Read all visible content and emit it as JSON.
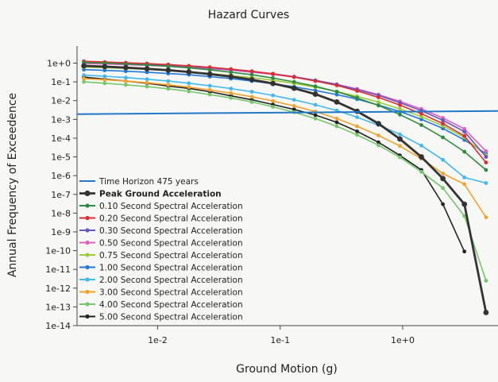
{
  "chart_data": {
    "type": "line",
    "title": "Hazard Curves",
    "xlabel": "Ground Motion (g)",
    "ylabel": "Annual Frequency of Exceedence",
    "x_scale": "log",
    "y_scale": "log",
    "xlim": [
      0.0022,
      6
    ],
    "ylim": [
      1e-14,
      5
    ],
    "x_ticks": [
      {
        "v": 0.01,
        "label": "1e-2"
      },
      {
        "v": 0.1,
        "label": "1e-1"
      },
      {
        "v": 1,
        "label": "1e+0"
      }
    ],
    "y_ticks": [
      {
        "v": 1,
        "label": "1e+0"
      },
      {
        "v": 0.1,
        "label": "1e-1"
      },
      {
        "v": 0.01,
        "label": "1e-2"
      },
      {
        "v": 0.001,
        "label": "1e-3"
      },
      {
        "v": 0.0001,
        "label": "1e-4"
      },
      {
        "v": 1e-05,
        "label": "1e-5"
      },
      {
        "v": 1e-06,
        "label": "1e-6"
      },
      {
        "v": 1e-07,
        "label": "1e-7"
      },
      {
        "v": 1e-08,
        "label": "1e-8"
      },
      {
        "v": 1e-09,
        "label": "1e-9"
      },
      {
        "v": 1e-10,
        "label": "1e-10"
      },
      {
        "v": 1e-11,
        "label": "1e-11"
      },
      {
        "v": 1e-12,
        "label": "1e-12"
      },
      {
        "v": 1e-13,
        "label": "1e-13"
      },
      {
        "v": 1e-14,
        "label": "1e-14"
      }
    ],
    "grid": false,
    "legend_position": "bottom-left",
    "x": [
      0.0025,
      0.0037,
      0.0055,
      0.0082,
      0.0122,
      0.018,
      0.0267,
      0.0397,
      0.0588,
      0.0873,
      0.13,
      0.194,
      0.29,
      0.425,
      0.635,
      0.95,
      1.42,
      2.13,
      3.19,
      4.79
    ],
    "reference_line": {
      "name": "Time Horizon 475 years",
      "y": 0.0021,
      "color": "#1f78c8"
    },
    "series": [
      {
        "name": "Peak Ground Acceleration",
        "color": "#333333",
        "bold": true,
        "y": [
          0.72,
          0.65,
          0.58,
          0.5,
          0.42,
          0.34,
          0.26,
          0.19,
          0.13,
          0.082,
          0.046,
          0.022,
          0.0085,
          0.0027,
          0.0006,
          9e-05,
          1e-05,
          7e-07,
          3e-08,
          5e-14
        ]
      },
      {
        "name": "0.10 Second Spectral Acceleration",
        "color": "#2e8b3e",
        "y": [
          1.1,
          1.0,
          0.9,
          0.8,
          0.68,
          0.56,
          0.44,
          0.33,
          0.24,
          0.16,
          0.1,
          0.058,
          0.03,
          0.014,
          0.0055,
          0.0018,
          0.0005,
          0.00011,
          1.9e-05,
          2e-06
        ]
      },
      {
        "name": "0.20 Second Spectral Acceleration",
        "color": "#e02c2c",
        "y": [
          1.25,
          1.15,
          1.05,
          0.95,
          0.84,
          0.72,
          0.6,
          0.48,
          0.37,
          0.27,
          0.18,
          0.11,
          0.065,
          0.033,
          0.015,
          0.0058,
          0.002,
          0.0006,
          0.00013,
          5e-06
        ]
      },
      {
        "name": "0.30 Second Spectral Acceleration",
        "color": "#6a55c0",
        "y": [
          1.15,
          1.07,
          0.98,
          0.89,
          0.79,
          0.68,
          0.57,
          0.46,
          0.36,
          0.27,
          0.19,
          0.12,
          0.073,
          0.039,
          0.019,
          0.0078,
          0.0029,
          0.0009,
          0.00022,
          1e-05
        ]
      },
      {
        "name": "0.50 Second Spectral Acceleration",
        "color": "#e060c0",
        "y": [
          0.95,
          0.9,
          0.83,
          0.76,
          0.68,
          0.6,
          0.51,
          0.42,
          0.33,
          0.25,
          0.18,
          0.12,
          0.075,
          0.042,
          0.021,
          0.0092,
          0.0036,
          0.0012,
          0.00031,
          2e-05
        ]
      },
      {
        "name": "0.75 Second Spectral Acceleration",
        "color": "#9ccc3a",
        "y": [
          0.62,
          0.57,
          0.52,
          0.46,
          0.4,
          0.34,
          0.28,
          0.22,
          0.17,
          0.12,
          0.082,
          0.052,
          0.031,
          0.017,
          0.0083,
          0.0036,
          0.0014,
          0.00045,
          0.00011,
          1.2e-05
        ]
      },
      {
        "name": "1.00 Second Spectral Acceleration",
        "color": "#1f78d8",
        "y": [
          0.45,
          0.41,
          0.37,
          0.33,
          0.28,
          0.24,
          0.19,
          0.15,
          0.11,
          0.08,
          0.055,
          0.035,
          0.021,
          0.012,
          0.0058,
          0.0026,
          0.001,
          0.00033,
          8e-05,
          1.5e-05
        ]
      },
      {
        "name": "2.00 Second Spectral Acceleration",
        "color": "#40b8f0",
        "y": [
          0.23,
          0.2,
          0.17,
          0.14,
          0.11,
          0.085,
          0.062,
          0.044,
          0.03,
          0.019,
          0.011,
          0.006,
          0.003,
          0.0013,
          0.00049,
          0.00016,
          4e-05,
          7e-06,
          8e-07,
          4e-07
        ]
      },
      {
        "name": "3.00 Second Spectral Acceleration",
        "color": "#f4a22b",
        "y": [
          0.15,
          0.13,
          0.11,
          0.09,
          0.07,
          0.052,
          0.037,
          0.025,
          0.016,
          0.0095,
          0.0052,
          0.0026,
          0.0011,
          0.00043,
          0.00014,
          3.8e-05,
          8e-06,
          1.3e-06,
          3.5e-07,
          6e-09
        ]
      },
      {
        "name": "4.00 Second Spectral Acceleration",
        "color": "#74c76a",
        "y": [
          0.1,
          0.085,
          0.07,
          0.056,
          0.043,
          0.031,
          0.021,
          0.014,
          0.0085,
          0.0047,
          0.0024,
          0.0011,
          0.00043,
          0.00015,
          4.2e-05,
          9.5e-06,
          1.6e-06,
          2.2e-07,
          7e-09,
          2.5e-12
        ]
      },
      {
        "name": "5.00 Second Spectral Acceleration",
        "color": "#222222",
        "y": [
          0.18,
          0.14,
          0.11,
          0.085,
          0.06,
          0.045,
          0.03,
          0.018,
          0.011,
          0.0062,
          0.0034,
          0.0017,
          0.0007,
          0.00023,
          6e-05,
          1.2e-05,
          2e-06,
          3e-08,
          9e-11,
          null
        ]
      }
    ]
  }
}
